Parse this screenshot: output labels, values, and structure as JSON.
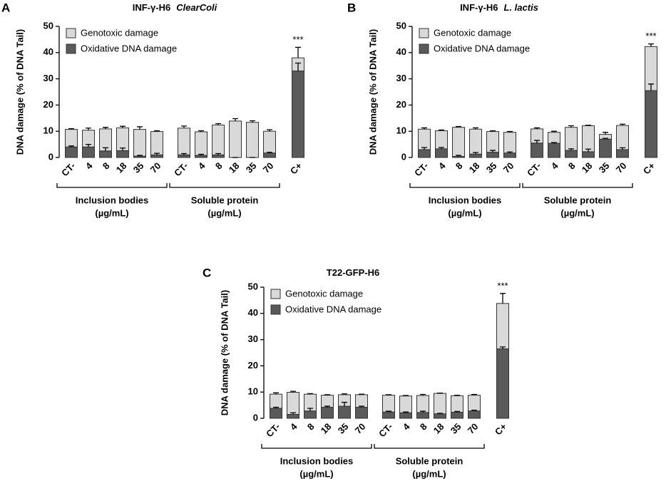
{
  "chart_data": [
    {
      "type": "stacked_bar",
      "panel": "A",
      "title": "INF-γ-H6",
      "title_italic": "ClearColi",
      "ylabel": "DNA damage (% of DNA Tail)",
      "categories": [
        "CT-",
        "4",
        "8",
        "18",
        "35",
        "70",
        "CT-",
        "4",
        "8",
        "18",
        "35",
        "70",
        "C+"
      ],
      "groups": [
        {
          "lines": [
            "Inclusion bodies",
            "(µg/mL)"
          ]
        },
        {
          "lines": [
            "Soluble protein",
            "(µg/mL)"
          ]
        }
      ],
      "series": [
        {
          "name": "Oxidative DNA damage",
          "color": "#5a5a5a",
          "values": [
            4.0,
            4.0,
            2.5,
            2.6,
            0.5,
            1.0,
            1.0,
            0.8,
            1.0,
            0,
            0,
            1.7,
            33
          ],
          "errors": [
            0.4,
            1,
            1.2,
            1,
            0.3,
            0.6,
            0.5,
            0.4,
            0.5,
            0,
            0,
            0.3,
            3
          ]
        },
        {
          "name": "Genotoxic damage",
          "color": "#d9d9d9",
          "values": [
            6.7,
            6.4,
            8.4,
            8.7,
            10.2,
            8.9,
            10.2,
            9.0,
            11.4,
            13.9,
            13.4,
            8.3,
            5.0
          ],
          "errors": [
            0.3,
            0.8,
            0.6,
            0.6,
            1,
            0.3,
            0.8,
            0.4,
            0.5,
            0.9,
            0.6,
            0.6,
            4
          ]
        }
      ],
      "annotations": [
        {
          "text": "***",
          "x": "C+"
        }
      ],
      "ylim": [
        0,
        50
      ],
      "yticks": [
        0,
        10,
        20,
        30,
        40,
        50
      ]
    },
    {
      "type": "stacked_bar",
      "panel": "B",
      "title": "INF-γ-H6",
      "title_italic": "L. lactis",
      "ylabel": "DNA damage (% of DNA Tail)",
      "categories": [
        "CT-",
        "4",
        "8",
        "18",
        "35",
        "70",
        "CT-",
        "4",
        "8",
        "18",
        "35",
        "70",
        "C+"
      ],
      "groups": [
        {
          "lines": [
            "Inclusion bodies",
            "(µg/mL)"
          ]
        },
        {
          "lines": [
            "Soluble protein",
            "(µg/mL)"
          ]
        }
      ],
      "series": [
        {
          "name": "Oxidative DNA damage",
          "color": "#5a5a5a",
          "values": [
            3,
            3.3,
            0.4,
            1.3,
            2,
            1.7,
            5.5,
            5.4,
            2.7,
            2.2,
            7,
            3,
            25.5
          ],
          "errors": [
            0.8,
            0.5,
            0.4,
            0.6,
            0.7,
            0.4,
            1,
            0.3,
            0.6,
            1,
            0.3,
            0.7,
            2.5
          ]
        },
        {
          "name": "Genotoxic damage",
          "color": "#d9d9d9",
          "values": [
            7.8,
            6.9,
            11.1,
            9.5,
            7.9,
            7.9,
            5.4,
            4.2,
            8.8,
            9.9,
            1.8,
            9.2,
            16.8
          ],
          "errors": [
            0.5,
            0.3,
            0.3,
            0.5,
            0.3,
            0.3,
            0.4,
            0.4,
            0.6,
            0.2,
            0.8,
            0.5,
            1
          ]
        }
      ],
      "annotations": [
        {
          "text": "***",
          "x": "C+"
        }
      ],
      "ylim": [
        0,
        50
      ],
      "yticks": [
        0,
        10,
        20,
        30,
        40,
        50
      ]
    },
    {
      "type": "stacked_bar",
      "panel": "C",
      "title": "T22-GFP-H6",
      "ylabel": "DNA damage (% of DNA Tail)",
      "categories": [
        "CT-",
        "4",
        "8",
        "18",
        "35",
        "70",
        "CT-",
        "4",
        "8",
        "18",
        "35",
        "70",
        "C+"
      ],
      "groups": [
        {
          "lines": [
            "Inclusion bodies",
            "(µg/mL)"
          ]
        },
        {
          "lines": [
            "Soluble protein",
            "(µg/mL)"
          ]
        }
      ],
      "series": [
        {
          "name": "Oxidative DNA damage",
          "color": "#5a5a5a",
          "values": [
            3.8,
            1.5,
            2.8,
            4.2,
            4.6,
            4.2,
            2.4,
            2.1,
            2.2,
            1.7,
            2.3,
            2.8,
            26.5
          ],
          "errors": [
            0.4,
            0.6,
            1,
            0.4,
            1.5,
            0.4,
            0.3,
            0.3,
            0.5,
            0.2,
            0.3,
            0.3,
            0.7
          ]
        },
        {
          "name": "Genotoxic damage",
          "color": "#d9d9d9",
          "values": [
            5.4,
            8.4,
            6.4,
            4.6,
            4.4,
            4.8,
            6.4,
            6.4,
            6.5,
            7.8,
            6.3,
            6.0,
            17.3
          ],
          "errors": [
            0.5,
            0.4,
            0.2,
            0.2,
            0.3,
            0.2,
            0.2,
            0.2,
            0.4,
            0.1,
            0.2,
            0.3,
            3.8
          ]
        }
      ],
      "annotations": [
        {
          "text": "***",
          "x": "C+"
        }
      ],
      "ylim": [
        0,
        50
      ],
      "yticks": [
        0,
        10,
        20,
        30,
        40,
        50
      ]
    }
  ]
}
